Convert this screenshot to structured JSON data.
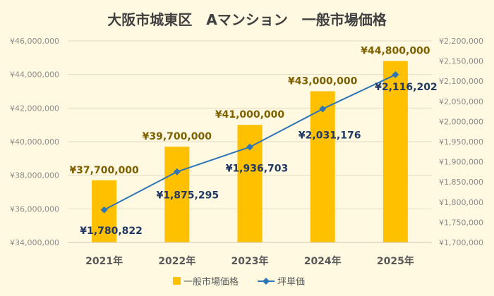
{
  "chart_data": {
    "type": "bar",
    "title": "大阪市城東区　Aマンション　一般市場価格",
    "categories": [
      "2021年",
      "2022年",
      "2023年",
      "2024年",
      "2025年"
    ],
    "series": [
      {
        "name": "一般市場価格",
        "type": "bar",
        "axis": "left",
        "color": "#ffc000",
        "values": [
          37700000,
          39700000,
          41000000,
          43000000,
          44800000
        ],
        "labels": [
          "¥37,700,000",
          "¥39,700,000",
          "¥41,000,000",
          "¥43,000,000",
          "¥44,800,000"
        ],
        "label_color": "#7f6000"
      },
      {
        "name": "坪単価",
        "type": "line",
        "axis": "right",
        "color": "#2e75b6",
        "values": [
          1780822,
          1875295,
          1936703,
          2031176,
          2116202
        ],
        "labels": [
          "¥1,780,822",
          "¥1,875,295",
          "¥1,936,703",
          "¥2,031,176",
          "¥2,116,202"
        ],
        "label_color": "#1f3864"
      }
    ],
    "y_left": {
      "range": [
        34000000,
        46000000
      ],
      "ticks": [
        "¥34,000,000",
        "¥36,000,000",
        "¥38,000,000",
        "¥40,000,000",
        "¥42,000,000",
        "¥44,000,000",
        "¥46,000,000"
      ]
    },
    "y_right": {
      "range": [
        1700000,
        2200000
      ],
      "ticks": [
        "¥1,700,000",
        "¥1,750,000",
        "¥1,800,000",
        "¥1,850,000",
        "¥1,900,000",
        "¥1,950,000",
        "¥2,000,000",
        "¥2,050,000",
        "¥2,100,000",
        "¥2,150,000",
        "¥2,200,000"
      ]
    },
    "grid": true,
    "legend": "bottom-center",
    "colors": {
      "background": "#fff9e1",
      "grid": "#e3dcc2",
      "axis_text": "#8c8c8c",
      "title": "#404040"
    }
  }
}
